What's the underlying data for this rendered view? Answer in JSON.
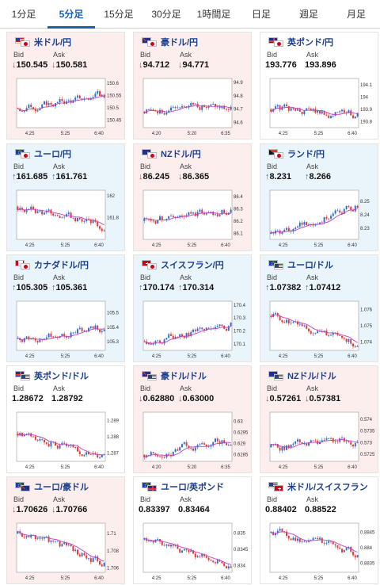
{
  "tabs": [
    {
      "label": "1分足",
      "active": false
    },
    {
      "label": "5分足",
      "active": true
    },
    {
      "label": "15分足",
      "active": false
    },
    {
      "label": "30分足",
      "active": false
    },
    {
      "label": "1時間足",
      "active": false
    },
    {
      "label": "日足",
      "active": false
    },
    {
      "label": "週足",
      "active": false
    },
    {
      "label": "月足",
      "active": false
    }
  ],
  "labels": {
    "bid": "Bid",
    "ask": "Ask"
  },
  "colors": {
    "up_candle": "#2b6fd6",
    "down_candle": "#e53935",
    "ma": "#c53ec4",
    "bid_down": "#d23c3c",
    "bid_up": "#2f6fc0"
  },
  "pairs": [
    {
      "name": "米ドル/円",
      "flags": [
        "us",
        "jp"
      ],
      "dir": "down",
      "bid": "150.545",
      "ask": "150.581",
      "chart_data": {
        "type": "candlestick",
        "x_ticks": [
          "4:25",
          "5:25",
          "6:40"
        ],
        "y_ticks": [
          "150.6",
          "150.55",
          "150.5",
          "150.45"
        ],
        "ylim": [
          150.42,
          150.62
        ],
        "close_start": 150.5,
        "close_end": 150.55,
        "n": 40
      }
    },
    {
      "name": "豪ドル/円",
      "flags": [
        "au",
        "jp"
      ],
      "dir": "down",
      "bid": "94.712",
      "ask": "94.771",
      "chart_data": {
        "type": "candlestick",
        "x_ticks": [
          "4:20",
          "5:20",
          "6:35"
        ],
        "y_ticks": [
          "94.9",
          "94.8",
          "94.7",
          "94.6"
        ],
        "ylim": [
          94.56,
          94.93
        ],
        "close_start": 94.68,
        "close_end": 94.75,
        "n": 40
      }
    },
    {
      "name": "英ポンド/円",
      "flags": [
        "gb",
        "jp"
      ],
      "dir": "flat",
      "bid": "193.776",
      "ask": "193.896",
      "chart_data": {
        "type": "candlestick",
        "x_ticks": [
          "4:25",
          "5:25",
          "6:40"
        ],
        "y_ticks": [
          "194.1",
          "194",
          "193.9",
          "193.8"
        ],
        "ylim": [
          193.75,
          194.15
        ],
        "close_start": 193.9,
        "close_end": 193.85,
        "n": 40
      }
    },
    {
      "name": "ユーロ/円",
      "flags": [
        "eu",
        "jp"
      ],
      "dir": "up",
      "bid": "161.685",
      "ask": "161.761",
      "chart_data": {
        "type": "candlestick",
        "x_ticks": [
          "4:25",
          "5:25",
          "6:40"
        ],
        "y_ticks": [
          "162",
          "161.8"
        ],
        "ylim": [
          161.6,
          162.05
        ],
        "close_start": 161.9,
        "close_end": 161.72,
        "n": 40
      }
    },
    {
      "name": "NZドル/円",
      "flags": [
        "nz",
        "jp"
      ],
      "dir": "down",
      "bid": "86.245",
      "ask": "86.365",
      "chart_data": {
        "type": "candlestick",
        "x_ticks": [
          "4:25",
          "5:25",
          "6:40"
        ],
        "y_ticks": [
          "86.4",
          "86.3",
          "86.2",
          "86.1"
        ],
        "ylim": [
          86.05,
          86.45
        ],
        "close_start": 86.2,
        "close_end": 86.3,
        "n": 40
      }
    },
    {
      "name": "ランド/円",
      "flags": [
        "za",
        "jp"
      ],
      "dir": "up",
      "bid": "8.231",
      "ask": "8.266",
      "chart_data": {
        "type": "candlestick",
        "x_ticks": [
          "4:25",
          "5:25",
          "6:40"
        ],
        "y_ticks": [
          "8.25",
          "8.24",
          "8.23"
        ],
        "ylim": [
          8.222,
          8.258
        ],
        "close_start": 8.226,
        "close_end": 8.248,
        "n": 40
      }
    },
    {
      "name": "カナダドル/円",
      "flags": [
        "ca",
        "jp"
      ],
      "dir": "up",
      "bid": "105.305",
      "ask": "105.361",
      "chart_data": {
        "type": "candlestick",
        "x_ticks": [
          "4:25",
          "5:25",
          "6:40"
        ],
        "y_ticks": [
          "105.5",
          "105.4",
          "105.3"
        ],
        "ylim": [
          105.24,
          105.58
        ],
        "close_start": 105.32,
        "close_end": 105.4,
        "n": 40
      }
    },
    {
      "name": "スイスフラン/円",
      "flags": [
        "ch",
        "jp"
      ],
      "dir": "up",
      "bid": "170.174",
      "ask": "170.314",
      "chart_data": {
        "type": "candlestick",
        "x_ticks": [
          "4:25",
          "5:25",
          "6:40"
        ],
        "y_ticks": [
          "170.4",
          "170.3",
          "170.2",
          "170.1"
        ],
        "ylim": [
          170.05,
          170.43
        ],
        "close_start": 170.12,
        "close_end": 170.25,
        "n": 40
      }
    },
    {
      "name": "ユーロ/ドル",
      "flags": [
        "eu",
        "us"
      ],
      "dir": "up",
      "bid": "1.07382",
      "ask": "1.07412",
      "chart_data": {
        "type": "candlestick",
        "x_ticks": [
          "4:25",
          "5:25",
          "6:40"
        ],
        "y_ticks": [
          "1.076",
          "1.075",
          "1.074"
        ],
        "ylim": [
          1.0735,
          1.0765
        ],
        "close_start": 1.0756,
        "close_end": 1.0738,
        "n": 40
      }
    },
    {
      "name": "英ポンド/ドル",
      "flags": [
        "gb",
        "us"
      ],
      "dir": "flat",
      "bid": "1.28672",
      "ask": "1.28792",
      "chart_data": {
        "type": "candlestick",
        "x_ticks": [
          "4:25",
          "5:25",
          "6:40"
        ],
        "y_ticks": [
          "1.289",
          "1.288",
          "1.287"
        ],
        "ylim": [
          1.2865,
          1.2895
        ],
        "close_start": 1.2882,
        "close_end": 1.2868,
        "n": 40
      }
    },
    {
      "name": "豪ドル/ドル",
      "flags": [
        "au",
        "us"
      ],
      "dir": "down",
      "bid": "0.62880",
      "ask": "0.63000",
      "chart_data": {
        "type": "candlestick",
        "x_ticks": [
          "4:20",
          "5:20",
          "6:35"
        ],
        "y_ticks": [
          "0.63",
          "0.6295",
          "0.629",
          "0.6285"
        ],
        "ylim": [
          0.6282,
          0.6304
        ],
        "close_start": 0.6285,
        "close_end": 0.6292,
        "n": 40
      }
    },
    {
      "name": "NZドル/ドル",
      "flags": [
        "nz",
        "us"
      ],
      "dir": "down",
      "bid": "0.57261",
      "ask": "0.57381",
      "chart_data": {
        "type": "candlestick",
        "x_ticks": [
          "4:25",
          "5:25",
          "6:40"
        ],
        "y_ticks": [
          "0.574",
          "0.5735",
          "0.573",
          "0.5725"
        ],
        "ylim": [
          0.5722,
          0.5743
        ],
        "close_start": 0.5728,
        "close_end": 0.5731,
        "n": 40
      }
    },
    {
      "name": "ユーロ/豪ドル",
      "flags": [
        "eu",
        "au"
      ],
      "dir": "down",
      "bid": "1.70626",
      "ask": "1.70766",
      "chart_data": {
        "type": "candlestick",
        "x_ticks": [
          "4:25",
          "5:25",
          "6:40"
        ],
        "y_ticks": [
          "1.71",
          "1.708",
          "1.706"
        ],
        "ylim": [
          1.7055,
          1.7112
        ],
        "close_start": 1.71,
        "close_end": 1.7065,
        "n": 40
      }
    },
    {
      "name": "ユーロ/英ポンド",
      "flags": [
        "eu",
        "gb"
      ],
      "dir": "flat",
      "bid": "0.83397",
      "ask": "0.83464",
      "chart_data": {
        "type": "candlestick",
        "x_ticks": [
          "4:25",
          "5:25",
          "6:40"
        ],
        "y_ticks": [
          "0.835",
          "0.8345",
          "0.834"
        ],
        "ylim": [
          0.8338,
          0.8353
        ],
        "close_start": 0.8348,
        "close_end": 0.834,
        "n": 40
      }
    },
    {
      "name": "米ドル/スイスフラン",
      "flags": [
        "us",
        "ch"
      ],
      "dir": "flat",
      "bid": "0.88402",
      "ask": "0.88522",
      "chart_data": {
        "type": "candlestick",
        "x_ticks": [
          "4:25",
          "5:25",
          "6:40"
        ],
        "y_ticks": [
          "0.8845",
          "0.884",
          "0.8835"
        ],
        "ylim": [
          0.8832,
          0.8848
        ],
        "close_start": 0.8845,
        "close_end": 0.8838,
        "n": 40
      }
    }
  ]
}
